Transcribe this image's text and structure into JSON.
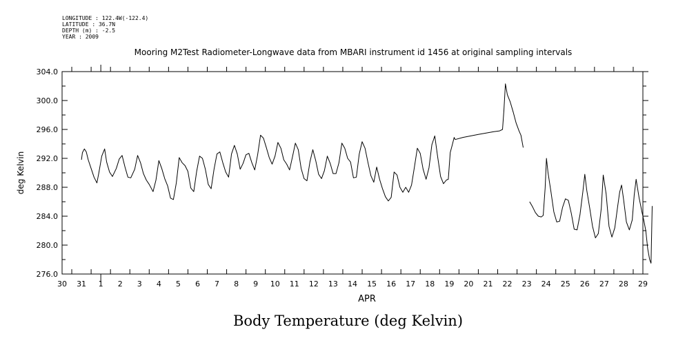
{
  "meta": {
    "longitude": "LONGITUDE : 122.4W(-122.4)",
    "latitude": "LATITUDE : 36.7N",
    "depth": "DEPTH (m) : -2.5",
    "year": "YEAR : 2009"
  },
  "caption": "Body Temperature (deg Kelvin)",
  "chart_data": {
    "type": "line",
    "title": "Mooring M2Test Radiometer-Longwave data from MBARI instrument id 1456 at original sampling intervals",
    "xlabel": "APR",
    "ylabel": "deg Kelvin",
    "xlim": [
      29.5,
      59.5
    ],
    "ylim": [
      276.0,
      304.0
    ],
    "y_ticks": [
      "276.0",
      "280.0",
      "284.0",
      "288.0",
      "292.0",
      "296.0",
      "300.0",
      "304.0"
    ],
    "x_tick_labels": [
      "30",
      "31",
      "1",
      "2",
      "3",
      "4",
      "5",
      "6",
      "7",
      "8",
      "9",
      "10",
      "11",
      "12",
      "13",
      "14",
      "15",
      "16",
      "17",
      "18",
      "19",
      "20",
      "21",
      "22",
      "23",
      "24",
      "25",
      "26",
      "27",
      "28",
      "29"
    ],
    "x_tick_days": [
      30,
      31,
      32,
      33,
      34,
      35,
      36,
      37,
      38,
      39,
      40,
      41,
      42,
      43,
      44,
      45,
      46,
      47,
      48,
      49,
      50,
      51,
      52,
      53,
      54,
      55,
      56,
      57,
      58,
      59,
      60
    ],
    "x_units": "day index (30 = Mar 30, 32 = Apr 1)",
    "grid": false,
    "series": [
      {
        "name": "",
        "segments": [
          [
            [
              30.5,
              291.8
            ],
            [
              30.55,
              292.8
            ],
            [
              30.65,
              293.3
            ],
            [
              30.75,
              292.9
            ],
            [
              30.85,
              291.8
            ],
            [
              31.0,
              290.6
            ],
            [
              31.15,
              289.4
            ],
            [
              31.3,
              288.6
            ],
            [
              31.4,
              290.0
            ],
            [
              31.55,
              292.3
            ],
            [
              31.7,
              293.3
            ],
            [
              31.8,
              291.5
            ],
            [
              31.95,
              290.1
            ],
            [
              32.1,
              289.5
            ],
            [
              32.3,
              290.6
            ],
            [
              32.45,
              291.9
            ],
            [
              32.6,
              292.4
            ],
            [
              32.75,
              290.8
            ],
            [
              32.9,
              289.4
            ],
            [
              33.05,
              289.3
            ],
            [
              33.25,
              290.5
            ],
            [
              33.4,
              292.4
            ],
            [
              33.55,
              291.4
            ],
            [
              33.7,
              289.9
            ],
            [
              33.85,
              289.0
            ],
            [
              34.0,
              288.4
            ],
            [
              34.2,
              287.4
            ],
            [
              34.35,
              289.0
            ],
            [
              34.5,
              291.7
            ],
            [
              34.65,
              290.6
            ],
            [
              34.8,
              289.2
            ],
            [
              34.95,
              288.2
            ],
            [
              35.1,
              286.5
            ],
            [
              35.25,
              286.3
            ],
            [
              35.4,
              288.6
            ],
            [
              35.55,
              292.1
            ],
            [
              35.7,
              291.4
            ],
            [
              35.85,
              291.0
            ],
            [
              36.0,
              290.2
            ],
            [
              36.15,
              287.9
            ],
            [
              36.3,
              287.4
            ],
            [
              36.45,
              290.2
            ],
            [
              36.6,
              292.3
            ],
            [
              36.75,
              292.0
            ],
            [
              36.9,
              290.5
            ],
            [
              37.05,
              288.4
            ],
            [
              37.2,
              287.8
            ],
            [
              37.35,
              290.5
            ],
            [
              37.5,
              292.6
            ],
            [
              37.65,
              292.9
            ],
            [
              37.8,
              291.4
            ],
            [
              37.95,
              290.1
            ],
            [
              38.1,
              289.4
            ],
            [
              38.25,
              292.6
            ],
            [
              38.4,
              293.8
            ],
            [
              38.55,
              292.6
            ],
            [
              38.7,
              290.5
            ],
            [
              38.85,
              291.3
            ],
            [
              39.0,
              292.5
            ],
            [
              39.15,
              292.7
            ],
            [
              39.3,
              291.4
            ],
            [
              39.45,
              290.4
            ],
            [
              39.6,
              292.5
            ],
            [
              39.75,
              295.2
            ],
            [
              39.9,
              294.8
            ],
            [
              40.05,
              293.5
            ],
            [
              40.2,
              292.1
            ],
            [
              40.35,
              291.2
            ],
            [
              40.5,
              292.3
            ],
            [
              40.65,
              294.2
            ],
            [
              40.8,
              293.4
            ],
            [
              40.95,
              291.8
            ],
            [
              41.1,
              291.2
            ],
            [
              41.25,
              290.4
            ],
            [
              41.4,
              292.2
            ],
            [
              41.55,
              294.1
            ],
            [
              41.7,
              293.2
            ],
            [
              41.85,
              290.6
            ],
            [
              42.0,
              289.2
            ],
            [
              42.15,
              288.9
            ],
            [
              42.3,
              291.5
            ],
            [
              42.45,
              293.2
            ],
            [
              42.6,
              291.7
            ],
            [
              42.75,
              289.8
            ],
            [
              42.9,
              289.2
            ],
            [
              43.05,
              290.3
            ],
            [
              43.2,
              292.3
            ],
            [
              43.35,
              291.3
            ],
            [
              43.5,
              289.9
            ],
            [
              43.65,
              289.9
            ],
            [
              43.8,
              291.4
            ],
            [
              43.95,
              294.1
            ],
            [
              44.1,
              293.4
            ],
            [
              44.25,
              292.0
            ],
            [
              44.4,
              291.5
            ],
            [
              44.55,
              289.3
            ],
            [
              44.7,
              289.4
            ],
            [
              44.85,
              292.6
            ],
            [
              45.0,
              294.3
            ],
            [
              45.15,
              293.4
            ],
            [
              45.3,
              291.4
            ],
            [
              45.45,
              289.6
            ],
            [
              45.6,
              288.7
            ],
            [
              45.75,
              290.8
            ],
            [
              45.9,
              289.1
            ],
            [
              46.05,
              287.8
            ],
            [
              46.2,
              286.7
            ],
            [
              46.35,
              286.1
            ],
            [
              46.5,
              286.6
            ],
            [
              46.65,
              290.1
            ],
            [
              46.8,
              289.7
            ],
            [
              46.95,
              288.0
            ],
            [
              47.1,
              287.3
            ],
            [
              47.25,
              288.0
            ],
            [
              47.4,
              287.3
            ],
            [
              47.55,
              288.3
            ],
            [
              47.7,
              290.8
            ],
            [
              47.85,
              293.4
            ],
            [
              48.0,
              292.7
            ],
            [
              48.15,
              290.5
            ],
            [
              48.3,
              289.1
            ],
            [
              48.45,
              290.7
            ],
            [
              48.6,
              293.9
            ],
            [
              48.75,
              295.1
            ],
            [
              48.9,
              292.2
            ],
            [
              49.05,
              289.5
            ],
            [
              49.2,
              288.5
            ],
            [
              49.35,
              289.0
            ],
            [
              49.45,
              289.1
            ],
            [
              49.55,
              292.8
            ],
            [
              49.65,
              293.8
            ],
            [
              49.75,
              294.9
            ],
            [
              49.8,
              294.6
            ]
          ],
          [
            [
              49.8,
              294.6
            ],
            [
              50.2,
              294.9
            ],
            [
              51.0,
              295.3
            ],
            [
              51.8,
              295.7
            ],
            [
              52.1,
              295.8
            ],
            [
              52.25,
              296.0
            ],
            [
              52.32,
              298.6
            ],
            [
              52.4,
              302.3
            ],
            [
              52.5,
              300.8
            ],
            [
              52.65,
              299.8
            ],
            [
              52.8,
              298.4
            ],
            [
              52.95,
              296.9
            ],
            [
              53.1,
              295.8
            ],
            [
              53.2,
              295.2
            ],
            [
              53.32,
              293.5
            ]
          ],
          [
            [
              53.65,
              286.0
            ],
            [
              53.8,
              285.3
            ],
            [
              53.95,
              284.5
            ],
            [
              54.1,
              284.0
            ],
            [
              54.25,
              283.9
            ],
            [
              54.35,
              284.1
            ],
            [
              54.45,
              287.9
            ],
            [
              54.52,
              292.0
            ],
            [
              54.6,
              290.0
            ],
            [
              54.75,
              287.4
            ],
            [
              54.9,
              284.6
            ],
            [
              55.05,
              283.2
            ],
            [
              55.2,
              283.3
            ],
            [
              55.35,
              285.2
            ],
            [
              55.5,
              286.4
            ],
            [
              55.65,
              286.2
            ],
            [
              55.8,
              284.4
            ],
            [
              55.95,
              282.2
            ],
            [
              56.1,
              282.1
            ],
            [
              56.25,
              284.2
            ],
            [
              56.4,
              287.4
            ],
            [
              56.5,
              289.8
            ],
            [
              56.6,
              287.6
            ],
            [
              56.75,
              285.2
            ],
            [
              56.9,
              282.6
            ],
            [
              57.05,
              281.0
            ],
            [
              57.2,
              281.6
            ],
            [
              57.35,
              285.1
            ],
            [
              57.45,
              289.7
            ],
            [
              57.6,
              287.1
            ],
            [
              57.75,
              282.6
            ],
            [
              57.9,
              281.1
            ],
            [
              58.05,
              282.4
            ],
            [
              58.2,
              285.4
            ],
            [
              58.3,
              287.3
            ],
            [
              58.4,
              288.3
            ],
            [
              58.5,
              286.4
            ],
            [
              58.65,
              283.2
            ],
            [
              58.8,
              282.1
            ],
            [
              58.95,
              283.5
            ],
            [
              59.05,
              286.9
            ],
            [
              59.15,
              289.1
            ],
            [
              59.3,
              286.6
            ],
            [
              59.45,
              284.6
            ],
            [
              59.55,
              283.4
            ],
            [
              59.65,
              282.0
            ],
            [
              59.75,
              279.5
            ],
            [
              59.85,
              278.0
            ],
            [
              59.92,
              277.5
            ],
            [
              59.98,
              285.4
            ]
          ]
        ]
      }
    ]
  }
}
